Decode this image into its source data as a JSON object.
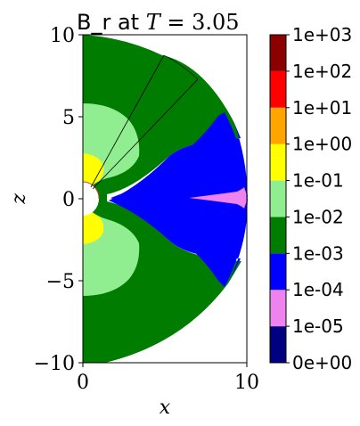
{
  "chart_data": {
    "type": "heatmap",
    "title": {
      "prefix": "B_r at ",
      "variable": "T",
      "relation": " = ",
      "value": "3.05"
    },
    "xlabel": "x",
    "ylabel": "z",
    "xlim": [
      0,
      10
    ],
    "ylim": [
      -10,
      10
    ],
    "x_ticks": [
      {
        "value": 0,
        "label": "0"
      },
      {
        "value": 10,
        "label": "10"
      }
    ],
    "y_ticks": [
      {
        "value": 10,
        "label": "10"
      },
      {
        "value": 5,
        "label": "5"
      },
      {
        "value": 0,
        "label": "0"
      },
      {
        "value": -5,
        "label": "−5"
      },
      {
        "value": -10,
        "label": "−10"
      }
    ],
    "colorbar": {
      "scale": "log",
      "levels": [
        {
          "from": "0e+00",
          "to": "1e-05",
          "color": "#000080"
        },
        {
          "from": "1e-05",
          "to": "1e-04",
          "color": "#ee82ee"
        },
        {
          "from": "1e-04",
          "to": "1e-03",
          "color": "#0000ff"
        },
        {
          "from": "1e-03",
          "to": "1e-02",
          "color": "#007c00"
        },
        {
          "from": "1e-02",
          "to": "1e-01",
          "color": "#90ee90"
        },
        {
          "from": "1e-01",
          "to": "1e+00",
          "color": "#ffff00"
        },
        {
          "from": "1e+00",
          "to": "1e+01",
          "color": "#ffa500"
        },
        {
          "from": "1e+01",
          "to": "1e+02",
          "color": "#ff0000"
        },
        {
          "from": "1e+02",
          "to": "1e+03",
          "color": "#8b0000"
        }
      ],
      "tick_labels": [
        "0e+00",
        "1e-05",
        "1e-04",
        "1e-03",
        "1e-02",
        "1e-01",
        "1e+00",
        "1e+01",
        "1e+02",
        "1e+03"
      ]
    }
  }
}
